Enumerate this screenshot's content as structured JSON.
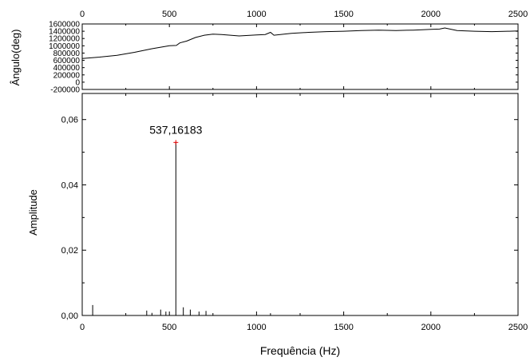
{
  "chart_data": [
    {
      "type": "line",
      "title": "",
      "xlabel": "",
      "ylabel": "Ângulo(deg)",
      "xlim": [
        0,
        2500
      ],
      "ylim": [
        -200000,
        1600000
      ],
      "x_ticks": [
        0,
        500,
        1000,
        1500,
        2000,
        2500
      ],
      "x_tick_labels": [
        "0",
        "500",
        "1000",
        "1500",
        "2000",
        "2500"
      ],
      "x_tick_position": "top",
      "y_ticks": [
        -200000,
        0,
        200000,
        400000,
        600000,
        800000,
        1000000,
        1200000,
        1400000,
        1600000
      ],
      "y_tick_labels": [
        "-200000",
        "0",
        "200000",
        "400000",
        "600000",
        "800000",
        "1000000",
        "1200000",
        "1400000",
        "1600000"
      ],
      "grid": false,
      "series": [
        {
          "x": [
            0,
            100,
            200,
            300,
            400,
            500,
            540,
            560,
            600,
            650,
            700,
            750,
            800,
            900,
            1000,
            1050,
            1080,
            1100,
            1200,
            1300,
            1400,
            1500,
            1600,
            1700,
            1800,
            1900,
            2000,
            2050,
            2080,
            2150,
            2250,
            2350,
            2450,
            2500
          ],
          "y": [
            650000,
            690000,
            740000,
            820000,
            920000,
            1000000,
            1010000,
            1080000,
            1130000,
            1230000,
            1290000,
            1320000,
            1310000,
            1270000,
            1300000,
            1310000,
            1370000,
            1290000,
            1340000,
            1370000,
            1390000,
            1400000,
            1420000,
            1430000,
            1420000,
            1430000,
            1450000,
            1460000,
            1490000,
            1420000,
            1400000,
            1390000,
            1400000,
            1410000
          ]
        }
      ]
    },
    {
      "type": "bar",
      "title": "",
      "xlabel": "Frequência (Hz)",
      "ylabel": "Amplitude",
      "xlim": [
        0,
        2500
      ],
      "ylim": [
        0,
        0.068
      ],
      "x_ticks": [
        0,
        500,
        1000,
        1500,
        2000,
        2500
      ],
      "x_tick_labels": [
        "0",
        "500",
        "1000",
        "1500",
        "2000",
        "2500"
      ],
      "y_ticks": [
        0,
        0.02,
        0.04,
        0.06
      ],
      "y_tick_labels": [
        "0,00",
        "0,02",
        "0,04",
        "0,06"
      ],
      "grid": false,
      "annotation": {
        "text": "537,16183",
        "x": 537.16183,
        "y": 0.053
      },
      "series": [
        {
          "x": [
            60,
            370,
            400,
            450,
            480,
            537.16183,
            580,
            620,
            670,
            710,
            1080
          ],
          "y": [
            0.0032,
            0.0015,
            0.0008,
            0.0018,
            0.0012,
            0.053,
            0.0025,
            0.0018,
            0.0012,
            0.0014,
            0.0007
          ]
        }
      ]
    }
  ]
}
